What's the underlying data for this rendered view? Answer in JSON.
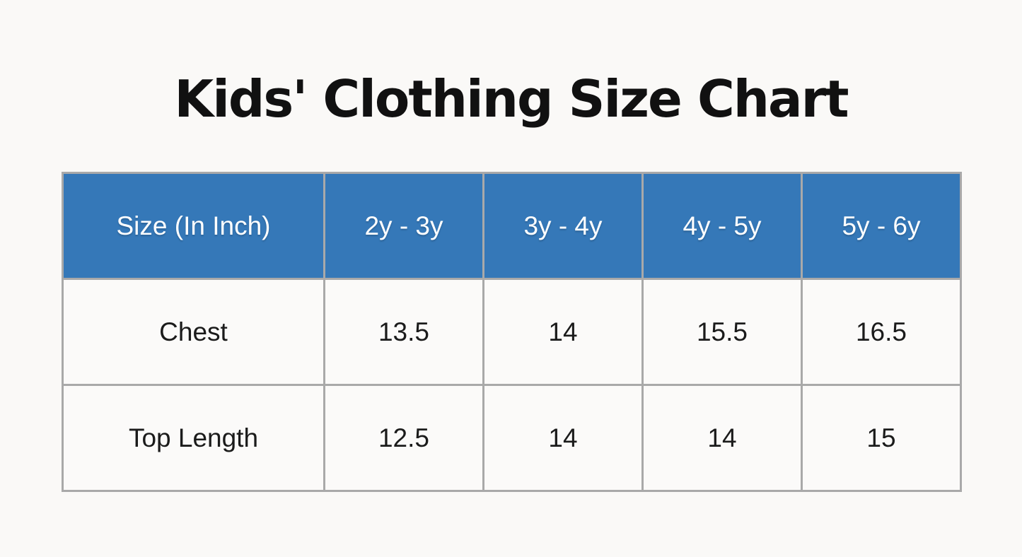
{
  "page": {
    "title": "Kids' Clothing Size Chart",
    "background_color": "#faf9f7"
  },
  "colors": {
    "header_background": "#3578b8",
    "header_text": "#ffffff",
    "cell_background": "#fbfaf9",
    "cell_text": "#1b1b1b",
    "grid_border": "#a9a9a9",
    "title_text": "#111111"
  },
  "chart_data": {
    "type": "table",
    "title": "Kids' Clothing Size Chart",
    "columns": [
      "Size (In Inch)",
      "2y - 3y",
      "3y - 4y",
      "4y - 5y",
      "5y - 6y"
    ],
    "rows": [
      {
        "label": "Chest",
        "values": [
          "13.5",
          "14",
          "15.5",
          "16.5"
        ]
      },
      {
        "label": "Top Length",
        "values": [
          "12.5",
          "14",
          "14",
          "15"
        ]
      }
    ]
  }
}
